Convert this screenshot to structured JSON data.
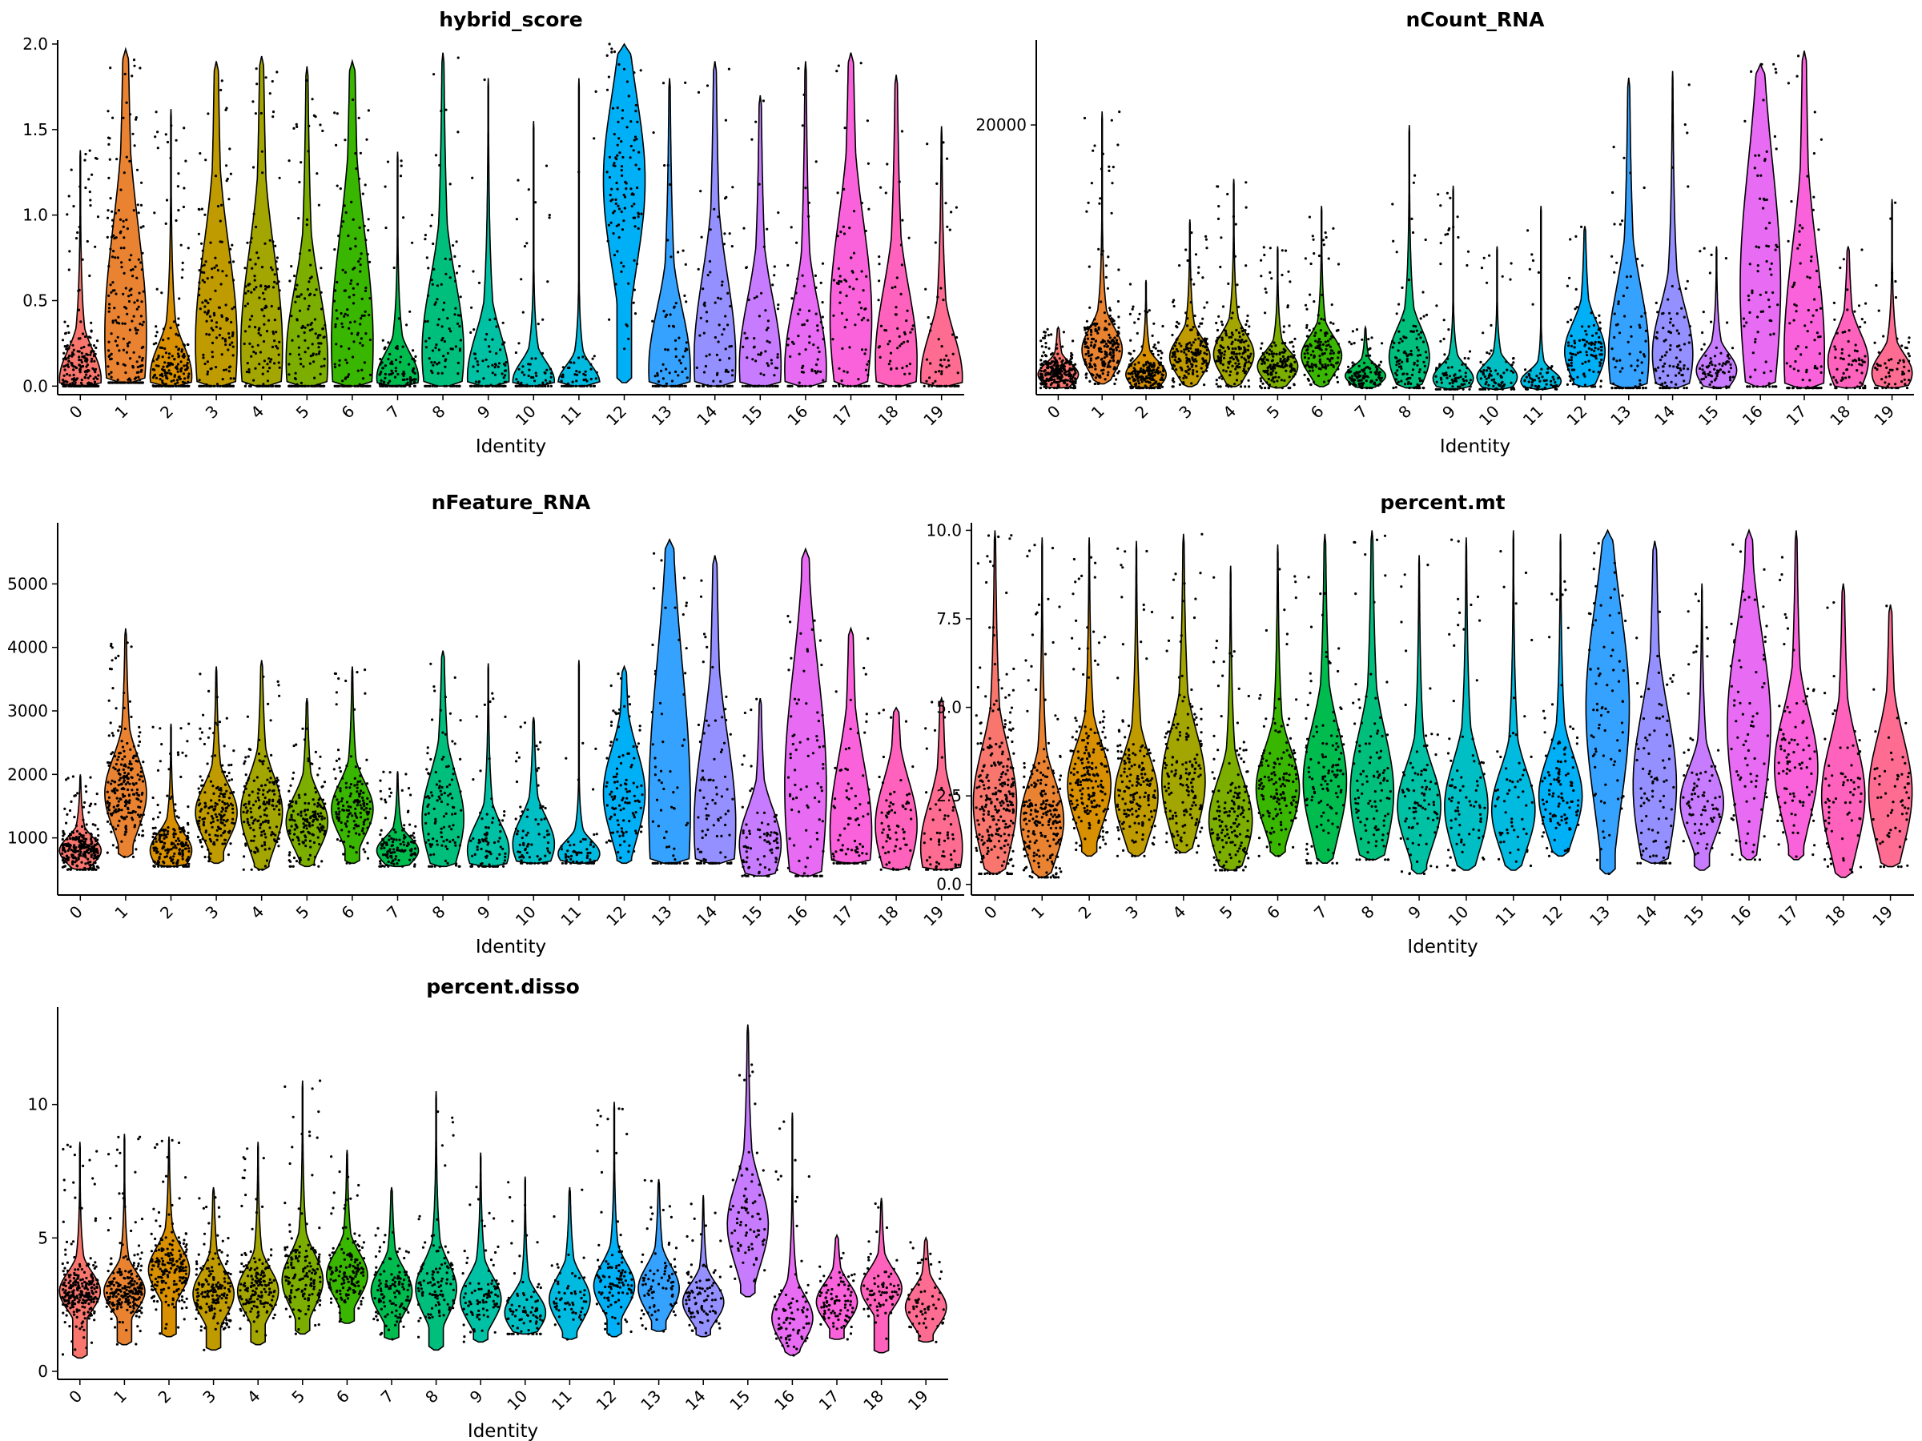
{
  "figure": {
    "xlabel": "Identity"
  },
  "chart_data": [
    {
      "type": "violin",
      "title": "hybrid_score",
      "xlabel": "Identity",
      "categories": [
        "0",
        "1",
        "2",
        "3",
        "4",
        "5",
        "6",
        "7",
        "8",
        "9",
        "10",
        "11",
        "12",
        "13",
        "14",
        "15",
        "16",
        "17",
        "18",
        "19"
      ],
      "ylim": [
        -0.05,
        2.0
      ],
      "yticks": [
        0.0,
        0.5,
        1.0,
        1.5,
        2.0
      ],
      "ytick_labels": [
        "0.0",
        "0.5",
        "1.0",
        "1.5",
        "2.0"
      ],
      "groups": [
        {
          "min": 0.0,
          "max": 1.38,
          "median": 0.08,
          "q3": 0.2,
          "mode": 0.04,
          "n": 260
        },
        {
          "min": 0.02,
          "max": 1.97,
          "median": 0.55,
          "q3": 1.0,
          "mode": 0.3,
          "n": 230
        },
        {
          "min": 0.0,
          "max": 1.62,
          "median": 0.12,
          "q3": 0.25,
          "mode": 0.06,
          "n": 200
        },
        {
          "min": 0.0,
          "max": 1.9,
          "median": 0.35,
          "q3": 0.75,
          "mode": 0.25,
          "n": 170
        },
        {
          "min": 0.0,
          "max": 1.93,
          "median": 0.35,
          "q3": 0.75,
          "mode": 0.22,
          "n": 170
        },
        {
          "min": 0.0,
          "max": 1.87,
          "median": 0.25,
          "q3": 0.55,
          "mode": 0.15,
          "n": 160
        },
        {
          "min": 0.0,
          "max": 1.9,
          "median": 0.45,
          "q3": 0.9,
          "mode": 0.25,
          "n": 150
        },
        {
          "min": 0.0,
          "max": 1.37,
          "median": 0.1,
          "q3": 0.2,
          "mode": 0.05,
          "n": 120
        },
        {
          "min": 0.0,
          "max": 1.95,
          "median": 0.3,
          "q3": 0.6,
          "mode": 0.2,
          "n": 110
        },
        {
          "min": 0.0,
          "max": 1.8,
          "median": 0.12,
          "q3": 0.3,
          "mode": 0.05,
          "n": 90
        },
        {
          "min": 0.0,
          "max": 1.55,
          "median": 0.07,
          "q3": 0.15,
          "mode": 0.03,
          "n": 80
        },
        {
          "min": 0.0,
          "max": 1.8,
          "median": 0.05,
          "q3": 0.12,
          "mode": 0.02,
          "n": 60
        },
        {
          "min": 0.02,
          "max": 2.0,
          "median": 0.95,
          "q3": 1.3,
          "mode": 1.2,
          "n": 110
        },
        {
          "min": 0.0,
          "max": 1.8,
          "median": 0.2,
          "q3": 0.45,
          "mode": 0.1,
          "n": 80
        },
        {
          "min": 0.0,
          "max": 1.9,
          "median": 0.25,
          "q3": 0.6,
          "mode": 0.15,
          "n": 90
        },
        {
          "min": 0.0,
          "max": 1.7,
          "median": 0.22,
          "q3": 0.5,
          "mode": 0.12,
          "n": 80
        },
        {
          "min": 0.0,
          "max": 1.9,
          "median": 0.18,
          "q3": 0.45,
          "mode": 0.1,
          "n": 80
        },
        {
          "min": 0.0,
          "max": 1.95,
          "median": 0.6,
          "q3": 1.0,
          "mode": 0.4,
          "n": 90
        },
        {
          "min": 0.0,
          "max": 1.82,
          "median": 0.3,
          "q3": 0.6,
          "mode": 0.15,
          "n": 70
        },
        {
          "min": 0.0,
          "max": 1.52,
          "median": 0.12,
          "q3": 0.3,
          "mode": 0.05,
          "n": 60
        }
      ]
    },
    {
      "type": "violin",
      "title": "nCount_RNA",
      "xlabel": "Identity",
      "categories": [
        "0",
        "1",
        "2",
        "3",
        "4",
        "5",
        "6",
        "7",
        "8",
        "9",
        "10",
        "11",
        "12",
        "13",
        "14",
        "15",
        "16",
        "17",
        "18",
        "19"
      ],
      "ylim": [
        0,
        26000
      ],
      "yticks": [
        20000
      ],
      "ytick_labels": [
        "20000"
      ],
      "groups": [
        {
          "min": 500,
          "max": 5000,
          "median": 1600,
          "q3": 2200,
          "mode": 1500,
          "n": 260
        },
        {
          "min": 800,
          "max": 21000,
          "median": 3800,
          "q3": 5000,
          "mode": 3300,
          "n": 230
        },
        {
          "min": 500,
          "max": 8500,
          "median": 1700,
          "q3": 2400,
          "mode": 1500,
          "n": 200
        },
        {
          "min": 600,
          "max": 13000,
          "median": 3200,
          "q3": 4200,
          "mode": 2800,
          "n": 170
        },
        {
          "min": 600,
          "max": 16000,
          "median": 3500,
          "q3": 4600,
          "mode": 3000,
          "n": 170
        },
        {
          "min": 500,
          "max": 11000,
          "median": 2400,
          "q3": 3200,
          "mode": 2100,
          "n": 160
        },
        {
          "min": 600,
          "max": 14000,
          "median": 3200,
          "q3": 4200,
          "mode": 2900,
          "n": 150
        },
        {
          "min": 500,
          "max": 5000,
          "median": 1500,
          "q3": 2000,
          "mode": 1400,
          "n": 120
        },
        {
          "min": 500,
          "max": 20000,
          "median": 3500,
          "q3": 5000,
          "mode": 2800,
          "n": 110
        },
        {
          "min": 400,
          "max": 15500,
          "median": 1500,
          "q3": 2200,
          "mode": 1200,
          "n": 90
        },
        {
          "min": 400,
          "max": 11000,
          "median": 1500,
          "q3": 2200,
          "mode": 1300,
          "n": 80
        },
        {
          "min": 400,
          "max": 14000,
          "median": 1100,
          "q3": 1500,
          "mode": 1000,
          "n": 60
        },
        {
          "min": 600,
          "max": 12500,
          "median": 3500,
          "q3": 5000,
          "mode": 3200,
          "n": 110
        },
        {
          "min": 500,
          "max": 23500,
          "median": 4500,
          "q3": 8000,
          "mode": 3000,
          "n": 80
        },
        {
          "min": 500,
          "max": 24000,
          "median": 4000,
          "q3": 6500,
          "mode": 3000,
          "n": 90
        },
        {
          "min": 500,
          "max": 11000,
          "median": 2300,
          "q3": 3200,
          "mode": 1800,
          "n": 80
        },
        {
          "min": 600,
          "max": 24500,
          "median": 6500,
          "q3": 13000,
          "mode": 8000,
          "n": 80
        },
        {
          "min": 500,
          "max": 25500,
          "median": 4500,
          "q3": 10000,
          "mode": 3000,
          "n": 90
        },
        {
          "min": 500,
          "max": 11000,
          "median": 3000,
          "q3": 4500,
          "mode": 2500,
          "n": 70
        },
        {
          "min": 500,
          "max": 14500,
          "median": 2200,
          "q3": 3200,
          "mode": 1600,
          "n": 60
        }
      ]
    },
    {
      "type": "violin",
      "title": "nFeature_RNA",
      "xlabel": "Identity",
      "categories": [
        "0",
        "1",
        "2",
        "3",
        "4",
        "5",
        "6",
        "7",
        "8",
        "9",
        "10",
        "11",
        "12",
        "13",
        "14",
        "15",
        "16",
        "17",
        "18",
        "19"
      ],
      "ylim": [
        100,
        5900
      ],
      "yticks": [
        1000,
        2000,
        3000,
        4000,
        5000
      ],
      "ytick_labels": [
        "1000",
        "2000",
        "3000",
        "4000",
        "5000"
      ],
      "groups": [
        {
          "min": 500,
          "max": 2000,
          "median": 850,
          "q3": 1000,
          "mode": 800,
          "n": 260
        },
        {
          "min": 700,
          "max": 4300,
          "median": 1800,
          "q3": 2200,
          "mode": 1700,
          "n": 230
        },
        {
          "min": 550,
          "max": 2800,
          "median": 850,
          "q3": 1050,
          "mode": 800,
          "n": 200
        },
        {
          "min": 600,
          "max": 3700,
          "median": 1500,
          "q3": 1800,
          "mode": 1400,
          "n": 170
        },
        {
          "min": 500,
          "max": 3800,
          "median": 1500,
          "q3": 1900,
          "mode": 1400,
          "n": 170
        },
        {
          "min": 550,
          "max": 3200,
          "median": 1300,
          "q3": 1600,
          "mode": 1250,
          "n": 160
        },
        {
          "min": 600,
          "max": 3700,
          "median": 1500,
          "q3": 1800,
          "mode": 1450,
          "n": 150
        },
        {
          "min": 550,
          "max": 2050,
          "median": 850,
          "q3": 1000,
          "mode": 800,
          "n": 120
        },
        {
          "min": 550,
          "max": 3950,
          "median": 1500,
          "q3": 2000,
          "mode": 1300,
          "n": 110
        },
        {
          "min": 550,
          "max": 3750,
          "median": 900,
          "q3": 1200,
          "mode": 800,
          "n": 90
        },
        {
          "min": 600,
          "max": 2900,
          "median": 1000,
          "q3": 1300,
          "mode": 900,
          "n": 80
        },
        {
          "min": 600,
          "max": 3800,
          "median": 800,
          "q3": 950,
          "mode": 750,
          "n": 60
        },
        {
          "min": 600,
          "max": 3700,
          "median": 1800,
          "q3": 2300,
          "mode": 1700,
          "n": 110
        },
        {
          "min": 600,
          "max": 5700,
          "median": 2200,
          "q3": 3800,
          "mode": 1500,
          "n": 80
        },
        {
          "min": 600,
          "max": 5450,
          "median": 1600,
          "q3": 2600,
          "mode": 1200,
          "n": 90
        },
        {
          "min": 400,
          "max": 3200,
          "median": 1000,
          "q3": 1400,
          "mode": 900,
          "n": 80
        },
        {
          "min": 400,
          "max": 5550,
          "median": 2200,
          "q3": 3500,
          "mode": 1800,
          "n": 80
        },
        {
          "min": 600,
          "max": 4300,
          "median": 1400,
          "q3": 2200,
          "mode": 1100,
          "n": 90
        },
        {
          "min": 500,
          "max": 3050,
          "median": 1400,
          "q3": 1900,
          "mode": 1200,
          "n": 70
        },
        {
          "min": 500,
          "max": 3200,
          "median": 1000,
          "q3": 1500,
          "mode": 850,
          "n": 60
        }
      ]
    },
    {
      "type": "violin",
      "title": "percent.mt",
      "xlabel": "Identity",
      "categories": [
        "0",
        "1",
        "2",
        "3",
        "4",
        "5",
        "6",
        "7",
        "8",
        "9",
        "10",
        "11",
        "12",
        "13",
        "14",
        "15",
        "16",
        "17",
        "18",
        "19"
      ],
      "ylim": [
        -0.3,
        10.1
      ],
      "yticks": [
        0.0,
        2.5,
        5.0,
        7.5,
        10.0
      ],
      "ytick_labels": [
        "0.0",
        "2.5",
        "5.0",
        "7.5",
        "10.0"
      ],
      "groups": [
        {
          "min": 0.3,
          "max": 10,
          "median": 2.7,
          "q3": 3.8,
          "mode": 2.3,
          "n": 260
        },
        {
          "min": 0.2,
          "max": 9.8,
          "median": 2.0,
          "q3": 2.8,
          "mode": 1.8,
          "n": 230
        },
        {
          "min": 0.8,
          "max": 9.8,
          "median": 3.0,
          "q3": 3.8,
          "mode": 2.8,
          "n": 200
        },
        {
          "min": 0.8,
          "max": 9.7,
          "median": 2.8,
          "q3": 3.6,
          "mode": 2.5,
          "n": 170
        },
        {
          "min": 0.9,
          "max": 9.9,
          "median": 3.2,
          "q3": 4.2,
          "mode": 2.9,
          "n": 170
        },
        {
          "min": 0.4,
          "max": 9.0,
          "median": 2.0,
          "q3": 2.8,
          "mode": 1.8,
          "n": 160
        },
        {
          "min": 0.8,
          "max": 9.6,
          "median": 2.9,
          "q3": 3.7,
          "mode": 2.7,
          "n": 150
        },
        {
          "min": 0.6,
          "max": 9.9,
          "median": 3.2,
          "q3": 4.3,
          "mode": 2.9,
          "n": 120
        },
        {
          "min": 0.7,
          "max": 10,
          "median": 3.0,
          "q3": 4.2,
          "mode": 2.6,
          "n": 110
        },
        {
          "min": 0.3,
          "max": 9.3,
          "median": 2.5,
          "q3": 3.3,
          "mode": 2.2,
          "n": 90
        },
        {
          "min": 0.4,
          "max": 9.8,
          "median": 2.5,
          "q3": 3.4,
          "mode": 2.2,
          "n": 80
        },
        {
          "min": 0.4,
          "max": 10,
          "median": 2.4,
          "q3": 3.2,
          "mode": 2.1,
          "n": 60
        },
        {
          "min": 0.8,
          "max": 9.9,
          "median": 2.7,
          "q3": 3.5,
          "mode": 2.5,
          "n": 110
        },
        {
          "min": 0.3,
          "max": 10,
          "median": 5.5,
          "q3": 7.5,
          "mode": 5.0,
          "n": 80
        },
        {
          "min": 0.6,
          "max": 9.7,
          "median": 3.3,
          "q3": 4.8,
          "mode": 2.8,
          "n": 90
        },
        {
          "min": 0.4,
          "max": 8.5,
          "median": 2.5,
          "q3": 3.2,
          "mode": 2.3,
          "n": 80
        },
        {
          "min": 0.7,
          "max": 10,
          "median": 5.0,
          "q3": 6.8,
          "mode": 4.5,
          "n": 80
        },
        {
          "min": 0.7,
          "max": 10,
          "median": 3.5,
          "q3": 4.6,
          "mode": 3.3,
          "n": 90
        },
        {
          "min": 0.2,
          "max": 8.5,
          "median": 2.8,
          "q3": 3.9,
          "mode": 2.5,
          "n": 70
        },
        {
          "min": 0.5,
          "max": 7.9,
          "median": 2.7,
          "q3": 3.8,
          "mode": 2.6,
          "n": 60
        }
      ]
    },
    {
      "type": "violin",
      "title": "percent.disso",
      "xlabel": "Identity",
      "categories": [
        "0",
        "1",
        "2",
        "3",
        "4",
        "5",
        "6",
        "7",
        "8",
        "9",
        "10",
        "11",
        "12",
        "13",
        "14",
        "15",
        "16",
        "17",
        "18",
        "19"
      ],
      "ylim": [
        -0.3,
        13.5
      ],
      "yticks": [
        0,
        5,
        10
      ],
      "ytick_labels": [
        "0",
        "5",
        "10"
      ],
      "groups": [
        {
          "min": 0.5,
          "max": 8.6,
          "median": 3.1,
          "q3": 3.6,
          "mode": 3.0,
          "n": 260
        },
        {
          "min": 1.0,
          "max": 8.9,
          "median": 3.2,
          "q3": 3.7,
          "mode": 3.0,
          "n": 230
        },
        {
          "min": 1.3,
          "max": 8.8,
          "median": 3.9,
          "q3": 4.5,
          "mode": 3.8,
          "n": 200
        },
        {
          "min": 0.8,
          "max": 6.9,
          "median": 3.0,
          "q3": 3.6,
          "mode": 2.9,
          "n": 170
        },
        {
          "min": 1.0,
          "max": 8.6,
          "median": 3.1,
          "q3": 3.7,
          "mode": 3.0,
          "n": 170
        },
        {
          "min": 1.4,
          "max": 10.9,
          "median": 3.5,
          "q3": 4.2,
          "mode": 3.4,
          "n": 160
        },
        {
          "min": 1.8,
          "max": 8.3,
          "median": 3.7,
          "q3": 4.3,
          "mode": 3.6,
          "n": 150
        },
        {
          "min": 1.2,
          "max": 6.9,
          "median": 3.1,
          "q3": 3.7,
          "mode": 3.0,
          "n": 120
        },
        {
          "min": 0.8,
          "max": 10.5,
          "median": 3.3,
          "q3": 4.0,
          "mode": 3.1,
          "n": 110
        },
        {
          "min": 1.1,
          "max": 8.2,
          "median": 2.9,
          "q3": 3.5,
          "mode": 2.7,
          "n": 90
        },
        {
          "min": 1.4,
          "max": 7.3,
          "median": 2.3,
          "q3": 2.8,
          "mode": 2.2,
          "n": 80
        },
        {
          "min": 1.2,
          "max": 6.9,
          "median": 2.9,
          "q3": 3.5,
          "mode": 2.7,
          "n": 60
        },
        {
          "min": 1.3,
          "max": 10.1,
          "median": 3.3,
          "q3": 3.9,
          "mode": 3.2,
          "n": 110
        },
        {
          "min": 1.5,
          "max": 7.2,
          "median": 3.2,
          "q3": 3.8,
          "mode": 3.1,
          "n": 80
        },
        {
          "min": 1.3,
          "max": 6.6,
          "median": 2.7,
          "q3": 3.2,
          "mode": 2.6,
          "n": 90
        },
        {
          "min": 2.8,
          "max": 13.0,
          "median": 5.8,
          "q3": 6.9,
          "mode": 5.5,
          "n": 80
        },
        {
          "min": 0.6,
          "max": 9.7,
          "median": 2.3,
          "q3": 2.9,
          "mode": 2.0,
          "n": 80
        },
        {
          "min": 1.2,
          "max": 5.1,
          "median": 2.7,
          "q3": 3.2,
          "mode": 2.6,
          "n": 90
        },
        {
          "min": 0.7,
          "max": 6.5,
          "median": 3.1,
          "q3": 3.6,
          "mode": 3.1,
          "n": 70
        },
        {
          "min": 1.1,
          "max": 5.0,
          "median": 2.5,
          "q3": 3.0,
          "mode": 2.4,
          "n": 60
        }
      ]
    }
  ]
}
